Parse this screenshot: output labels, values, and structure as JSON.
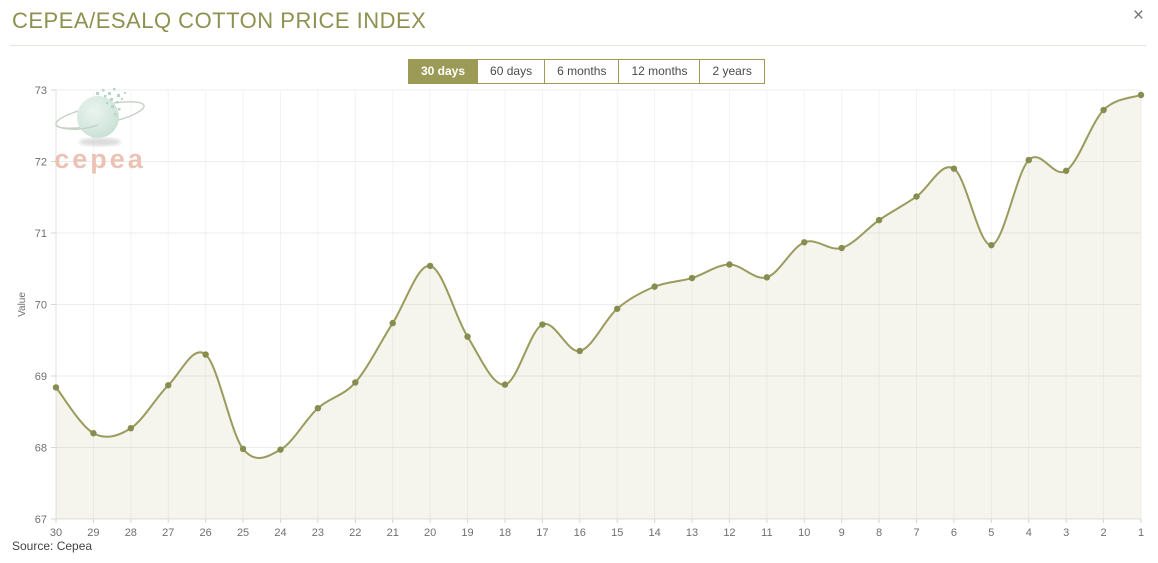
{
  "header": {
    "title": "CEPEA/ESALQ COTTON PRICE INDEX",
    "close_icon": "×"
  },
  "toolbar": {
    "buttons": [
      {
        "label": "30 days",
        "selected": true
      },
      {
        "label": "60 days",
        "selected": false
      },
      {
        "label": "6 months",
        "selected": false
      },
      {
        "label": "12 months",
        "selected": false
      },
      {
        "label": "2 years",
        "selected": false
      }
    ]
  },
  "logo": {
    "text": "cepea"
  },
  "footer": {
    "source": "Source: Cepea"
  },
  "chart_data": {
    "type": "area",
    "title": "CEPEA/ESALQ COTTON PRICE INDEX",
    "xlabel": "",
    "ylabel": "Value",
    "categories": [
      "30",
      "29",
      "28",
      "27",
      "26",
      "25",
      "24",
      "23",
      "22",
      "21",
      "20",
      "19",
      "18",
      "17",
      "16",
      "15",
      "14",
      "13",
      "12",
      "11",
      "10",
      "9",
      "8",
      "7",
      "6",
      "5",
      "4",
      "3",
      "2",
      "1"
    ],
    "values": [
      68.84,
      68.2,
      68.27,
      68.87,
      69.3,
      67.98,
      67.97,
      68.55,
      68.91,
      69.74,
      70.54,
      69.55,
      68.88,
      69.72,
      69.35,
      69.94,
      70.25,
      70.37,
      70.56,
      70.38,
      70.87,
      70.79,
      71.18,
      71.51,
      71.9,
      70.83,
      72.02,
      71.87,
      72.72,
      72.93
    ],
    "ylim": [
      67,
      73
    ],
    "yticks": [
      67,
      68,
      69,
      70,
      71,
      72,
      73
    ],
    "grid": true,
    "legend": "none",
    "colors": {
      "line": "#9a9b5c",
      "marker": "#878c4f",
      "area": "rgba(154,155,88,0.10)",
      "grid_h": "#ececec",
      "grid_v": "#f3f3ef",
      "axis": "#e2e2dc",
      "tick": "#d6d6d0",
      "label": "#6f6f6f"
    }
  }
}
